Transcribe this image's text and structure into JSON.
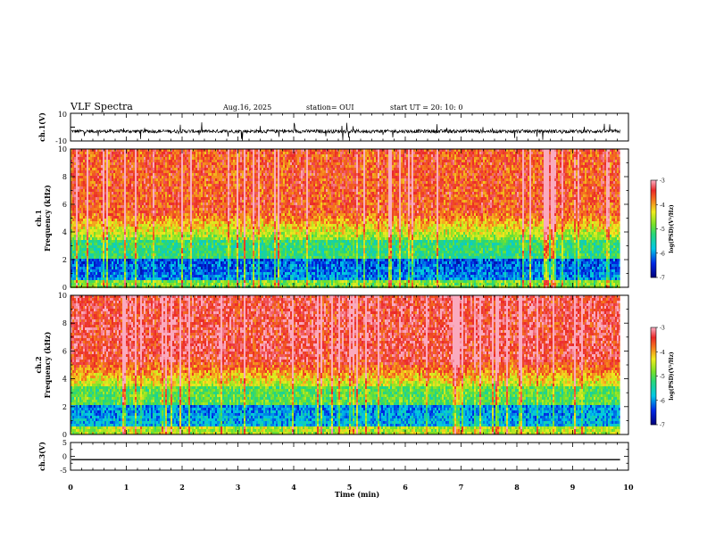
{
  "header": {
    "title": "VLF Spectra",
    "date": "Aug.16, 2025",
    "station": "station= OUI",
    "start": "start  UT  =   20: 10: 0"
  },
  "chart_data": [
    {
      "type": "line",
      "name": "ch1-waveform",
      "ylabel": "ch.1(V)",
      "ylim": [
        -10,
        10
      ],
      "yticks": [
        "10",
        "-10"
      ],
      "baseline": -3,
      "amplitude_note": "noisy waveform approx -6..0 V with spikes"
    },
    {
      "type": "heatmap",
      "name": "ch1-spectrogram",
      "ylabel_top": "ch.1",
      "ylabel": "Frequency  (kHz)",
      "ylim": [
        0,
        10
      ],
      "yticks": [
        "0",
        "2",
        "4",
        "6",
        "8",
        "10"
      ],
      "colorbar_label": "log(PSD)(V²/Hz)",
      "colorbar_ticks": [
        "-3",
        "-4",
        "-5",
        "-6",
        "-7"
      ],
      "colorbar_range": [
        -7,
        -3
      ]
    },
    {
      "type": "heatmap",
      "name": "ch2-spectrogram",
      "ylabel_top": "ch.2",
      "ylabel": "Frequency  (kHz)",
      "ylim": [
        0,
        10
      ],
      "yticks": [
        "0",
        "2",
        "4",
        "6",
        "8",
        "10"
      ],
      "colorbar_label": "log(PSD)(V²/Hz)",
      "colorbar_ticks": [
        "-3",
        "-4",
        "-5",
        "-6",
        "-7"
      ],
      "colorbar_range": [
        -7,
        -3
      ]
    },
    {
      "type": "line",
      "name": "ch3-waveform",
      "ylabel": "ch.3(V)",
      "ylim": [
        -5,
        5
      ],
      "yticks": [
        "5",
        "0",
        "-5"
      ],
      "value": -1.2
    }
  ],
  "xaxis": {
    "label": "Time  (min)",
    "ticks": [
      "0",
      "1",
      "2",
      "3",
      "4",
      "5",
      "6",
      "7",
      "8",
      "9",
      "10"
    ],
    "xlim": [
      0,
      10
    ],
    "data_end": 9.85
  }
}
